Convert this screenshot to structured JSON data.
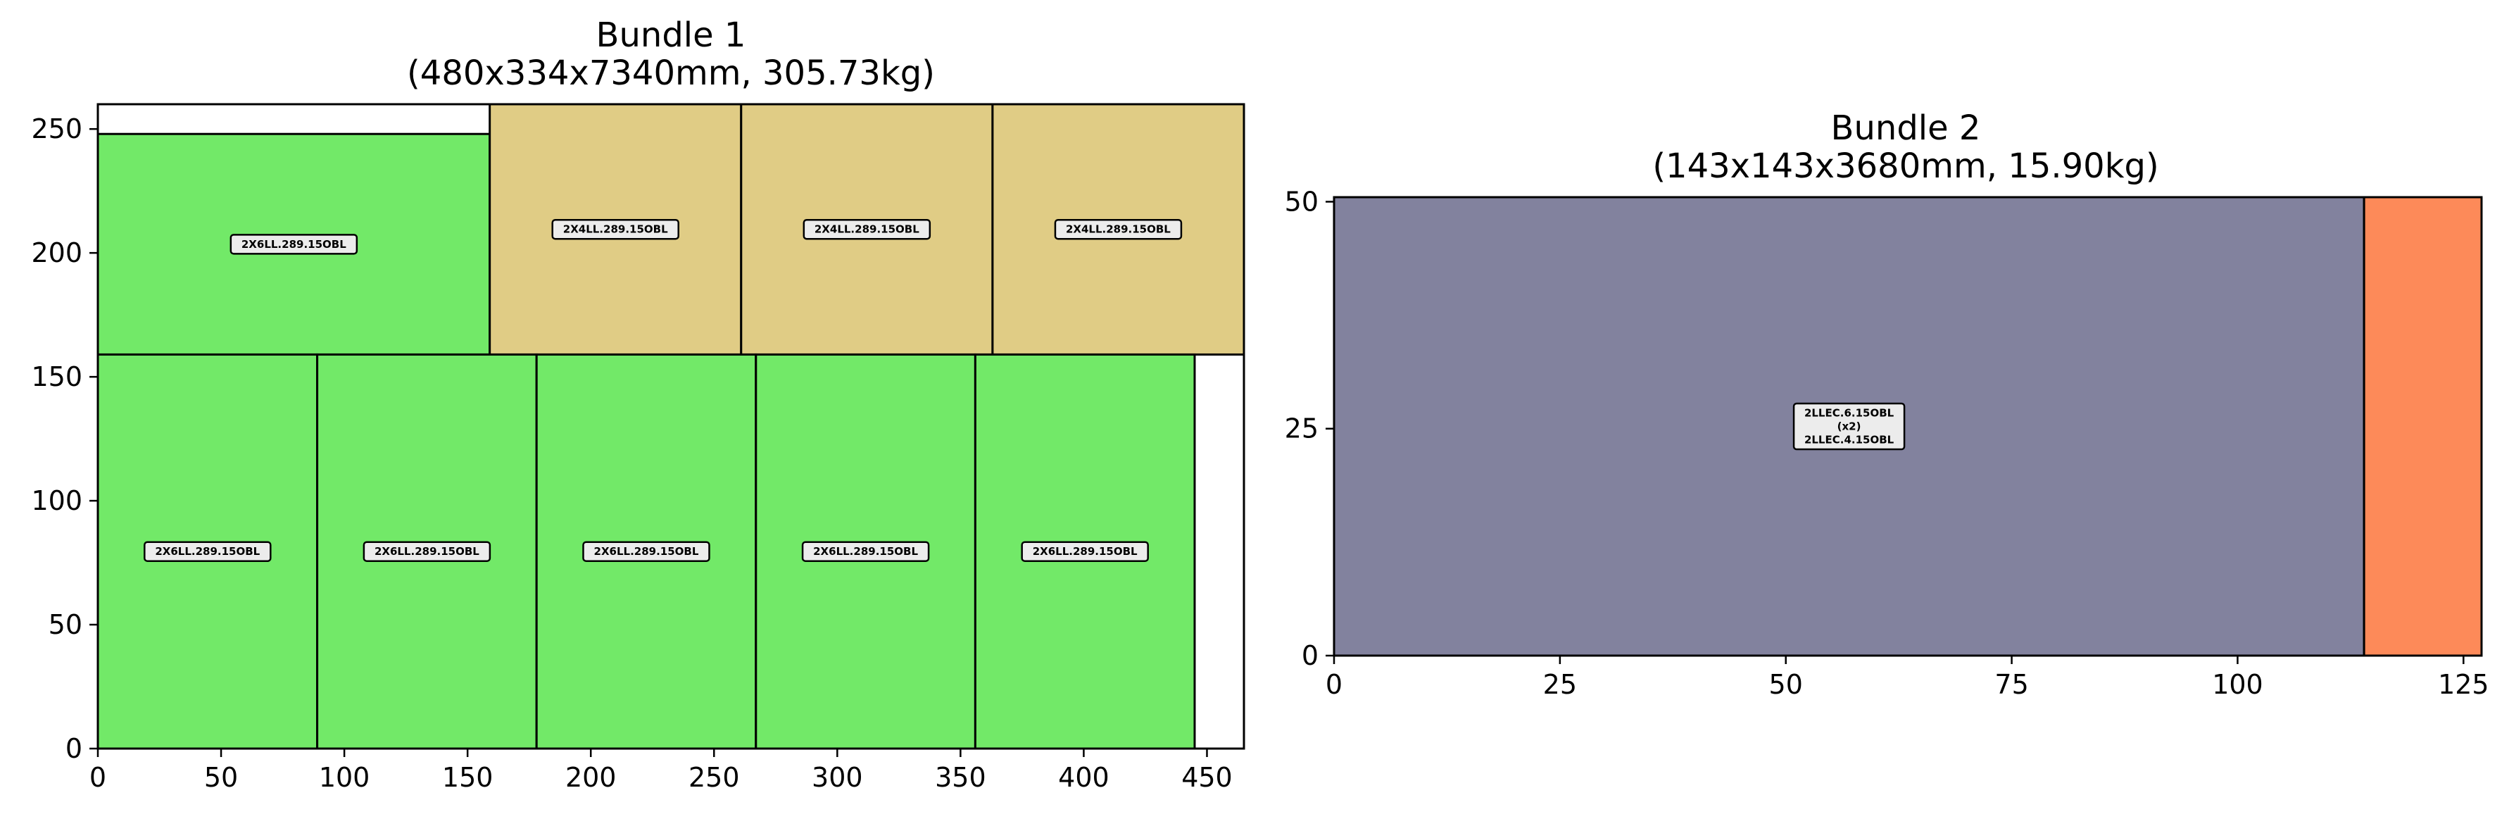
{
  "figure": {
    "panels": [
      {
        "title_line1": "Bundle 1",
        "title_line2": "(480x334x7340mm, 305.73kg)",
        "x_ticks": [
          "0",
          "50",
          "100",
          "150",
          "200",
          "250",
          "300",
          "350",
          "400",
          "450"
        ],
        "y_ticks": [
          "0",
          "50",
          "100",
          "150",
          "200",
          "250"
        ]
      },
      {
        "title_line1": "Bundle 2",
        "title_line2": "(143x143x3680mm, 15.90kg)",
        "x_ticks": [
          "0",
          "25",
          "50",
          "75",
          "100",
          "125"
        ],
        "y_ticks": [
          "0",
          "25",
          "50"
        ]
      }
    ]
  },
  "chart_data": [
    {
      "type": "rectangle-packing",
      "title": "Bundle 1\n(480x334x7340mm, 305.73kg)",
      "xlim": [
        0,
        465
      ],
      "ylim": [
        0,
        260
      ],
      "x_ticks": [
        0,
        50,
        100,
        150,
        200,
        250,
        300,
        350,
        400,
        450
      ],
      "y_ticks": [
        0,
        50,
        100,
        150,
        200,
        250
      ],
      "rects": [
        {
          "x": 0,
          "y": 159,
          "w": 159,
          "h": 89,
          "label": "2X6LL.289.15OBL",
          "color": "#72e968"
        },
        {
          "x": 159,
          "y": 159,
          "w": 102,
          "h": 101,
          "label": "2X4LL.289.15OBL",
          "color": "#e0cc85"
        },
        {
          "x": 261,
          "y": 159,
          "w": 102,
          "h": 101,
          "label": "2X4LL.289.15OBL",
          "color": "#e0cc85"
        },
        {
          "x": 363,
          "y": 159,
          "w": 102,
          "h": 101,
          "label": "2X4LL.289.15OBL",
          "color": "#e0cc85"
        },
        {
          "x": 0,
          "y": 0,
          "w": 89,
          "h": 159,
          "label": "2X6LL.289.15OBL",
          "color": "#72e968"
        },
        {
          "x": 89,
          "y": 0,
          "w": 89,
          "h": 159,
          "label": "2X6LL.289.15OBL",
          "color": "#72e968"
        },
        {
          "x": 178,
          "y": 0,
          "w": 89,
          "h": 159,
          "label": "2X6LL.289.15OBL",
          "color": "#72e968"
        },
        {
          "x": 267,
          "y": 0,
          "w": 89,
          "h": 159,
          "label": "2X6LL.289.15OBL",
          "color": "#72e968"
        },
        {
          "x": 356,
          "y": 0,
          "w": 89,
          "h": 159,
          "label": "2X6LL.289.15OBL",
          "color": "#72e968"
        }
      ]
    },
    {
      "type": "rectangle-packing",
      "title": "Bundle 2\n(143x143x3680mm, 15.90kg)",
      "xlim": [
        0,
        127
      ],
      "ylim": [
        0,
        50.5
      ],
      "x_ticks": [
        0,
        25,
        50,
        75,
        100,
        125
      ],
      "y_ticks": [
        0,
        25,
        50
      ],
      "rects": [
        {
          "x": 0,
          "y": 0,
          "w": 114,
          "h": 50.5,
          "label_lines": [
            "2LLEC.6.15OBL",
            "(x2)",
            "2LLEC.4.15OBL"
          ],
          "color": "#82829e"
        },
        {
          "x": 114,
          "y": 0,
          "w": 13,
          "h": 50.5,
          "label_lines": [],
          "color": "#fd8a59"
        }
      ]
    }
  ]
}
